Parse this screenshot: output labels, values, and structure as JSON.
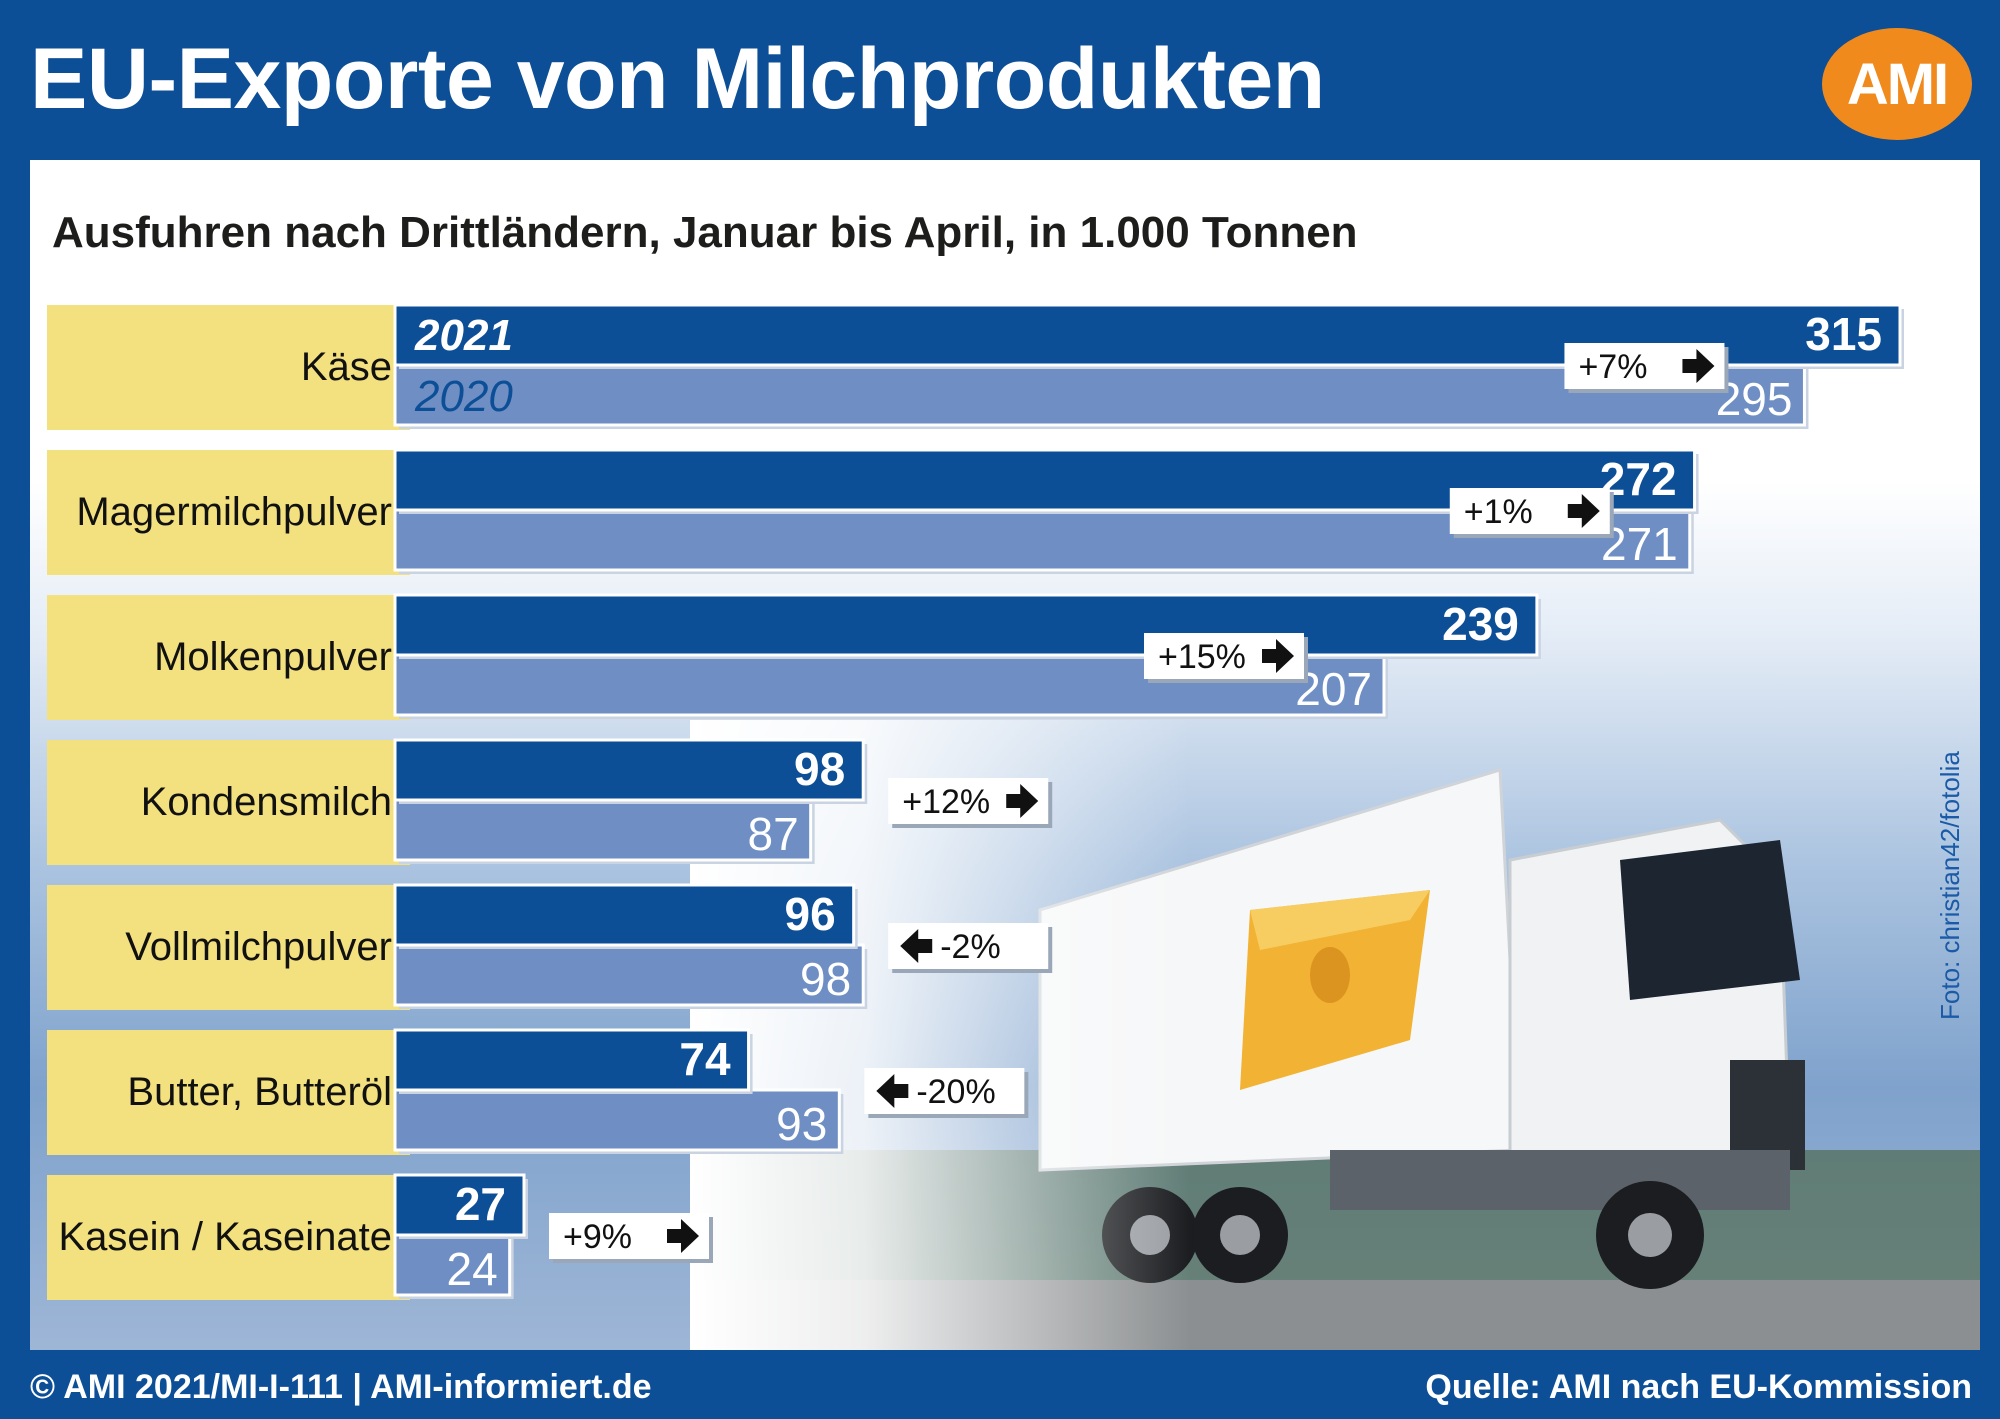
{
  "header": {
    "title": "EU-Exporte von Milchprodukten",
    "logo_text": "AMI"
  },
  "subtitle": "Ausfuhren nach Drittländern, Januar bis April, in 1.000 Tonnen",
  "photo_credit": "Foto: christian42/fotolia",
  "footer": {
    "left": "© AMI 2021/MI-I-111 | AMI-informiert.de",
    "right": "Quelle: AMI nach EU-Kommission"
  },
  "colors": {
    "bar_2021": "#0d4f97",
    "bar_2020": "#6f8fc4",
    "label_bg": "#f3e07e",
    "background": "#0d4f97",
    "logo": "#f08a1c"
  },
  "chart_data": {
    "type": "bar",
    "orientation": "horizontal",
    "title": "Ausfuhren nach Drittländern, Januar bis April, in 1.000 Tonnen",
    "categories": [
      "Käse",
      "Magermilchpulver",
      "Molkenpulver",
      "Kondensmilch",
      "Vollmilchpulver",
      "Butter, Butteröl",
      "Kasein / Kaseinate"
    ],
    "series": [
      {
        "name": "2021",
        "values": [
          315,
          272,
          239,
          98,
          96,
          74,
          27
        ]
      },
      {
        "name": "2020",
        "values": [
          295,
          271,
          207,
          87,
          98,
          93,
          24
        ]
      }
    ],
    "change_labels": [
      "+7%",
      "+1%",
      "+15%",
      "+12%",
      "-2%",
      "-20%",
      "+9%"
    ],
    "change_direction": [
      "up",
      "up",
      "up",
      "up",
      "down",
      "down",
      "up"
    ],
    "xlim": [
      0,
      315
    ],
    "grid": false,
    "legend": "inline labels on first category"
  }
}
